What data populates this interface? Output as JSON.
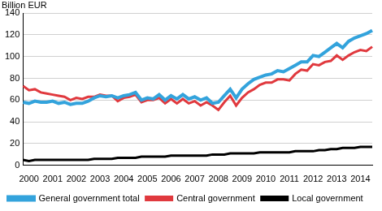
{
  "chart_data": {
    "type": "line",
    "ylabel": "Billion EUR",
    "categories": [
      null,
      "2000",
      null,
      null,
      null,
      "2001",
      null,
      null,
      null,
      "2002",
      null,
      null,
      null,
      "2003",
      null,
      null,
      null,
      "2004",
      null,
      null,
      null,
      "2005",
      null,
      null,
      null,
      "2006",
      null,
      null,
      null,
      "2007",
      null,
      null,
      null,
      "2008",
      null,
      null,
      null,
      "2009",
      null,
      null,
      null,
      "2010",
      null,
      null,
      null,
      "2011",
      null,
      null,
      null,
      "2012",
      null,
      null,
      null,
      "2013",
      null,
      null,
      null,
      "2014",
      null,
      null
    ],
    "series": [
      {
        "name": "General government total",
        "color": "#33a3dc",
        "values": [
          58,
          57,
          59,
          58,
          58,
          59,
          57,
          58,
          56,
          57,
          57,
          59,
          62,
          64,
          63,
          64,
          62,
          64,
          65,
          67,
          60,
          62,
          61,
          65,
          60,
          64,
          61,
          65,
          61,
          63,
          60,
          62,
          57,
          58,
          64,
          70,
          62,
          70,
          75,
          79,
          81,
          83,
          84,
          87,
          86,
          89,
          92,
          95,
          95,
          101,
          100,
          104,
          108,
          112,
          108,
          114,
          117,
          119,
          121,
          124
        ]
      },
      {
        "name": "Central government",
        "color": "#e0393e",
        "values": [
          73,
          69,
          70,
          67,
          66,
          65,
          64,
          63,
          60,
          62,
          61,
          63,
          63,
          65,
          64,
          64,
          59,
          62,
          63,
          65,
          58,
          60,
          60,
          62,
          57,
          61,
          57,
          61,
          57,
          59,
          55,
          58,
          55,
          51,
          58,
          64,
          55,
          62,
          67,
          70,
          74,
          76,
          76,
          79,
          79,
          78,
          84,
          88,
          87,
          93,
          92,
          95,
          96,
          101,
          97,
          101,
          104,
          106,
          105,
          109
        ]
      },
      {
        "name": "Local government",
        "color": "#000000",
        "values": [
          5,
          4,
          5,
          5,
          5,
          5,
          5,
          5,
          5,
          5,
          5,
          5,
          6,
          6,
          6,
          6,
          7,
          7,
          7,
          7,
          8,
          8,
          8,
          8,
          8,
          9,
          9,
          9,
          9,
          9,
          9,
          9,
          10,
          10,
          10,
          11,
          11,
          11,
          11,
          11,
          12,
          12,
          12,
          12,
          12,
          12,
          13,
          13,
          13,
          13,
          14,
          14,
          15,
          15,
          16,
          16,
          16,
          17,
          17,
          17
        ]
      }
    ],
    "ylim": [
      0,
      140
    ],
    "yticks": [
      0,
      20,
      40,
      60,
      80,
      100,
      120,
      140
    ],
    "grid": true,
    "legend": "bottom"
  }
}
